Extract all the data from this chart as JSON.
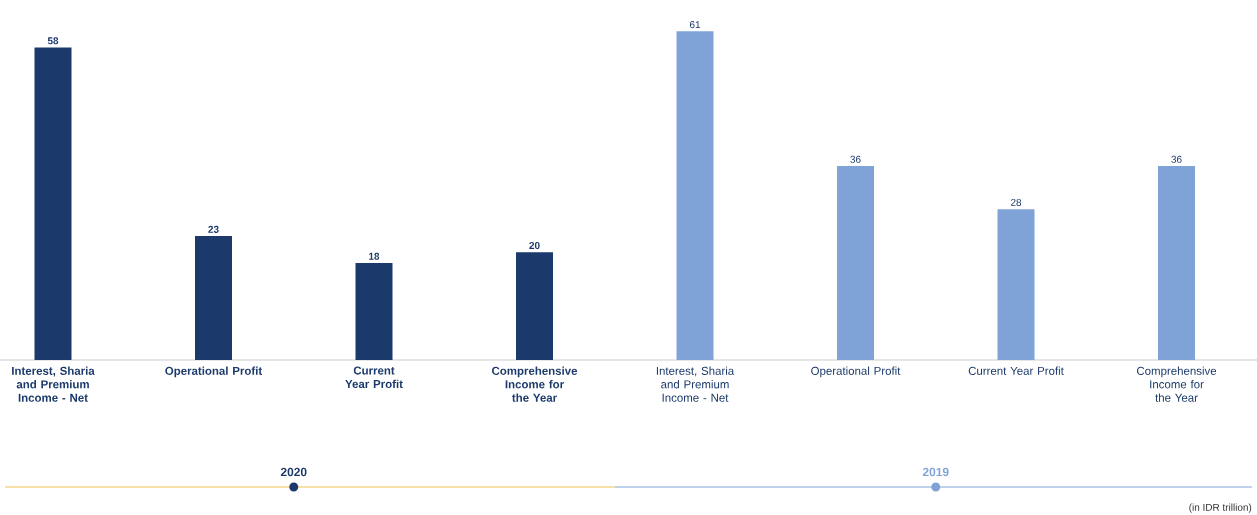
{
  "chart_data": {
    "type": "bar",
    "categories": [
      "Interest, Sharia and Premium Income - Net",
      "Operational Profit",
      "Current Year Profit",
      "Comprehensive Income for the Year",
      "Interest, Sharia and Premium Income - Net",
      "Operational Profit",
      "Current Year Profit",
      "Comprehensive Income for the Year"
    ],
    "series": [
      {
        "name": "2020",
        "color": "#1b3a6b",
        "values": [
          58,
          23,
          18,
          20,
          null,
          null,
          null,
          null
        ]
      },
      {
        "name": "2019",
        "color": "#7fa3d7",
        "values": [
          null,
          null,
          null,
          null,
          61,
          36,
          28,
          36
        ]
      }
    ],
    "data_labels": true,
    "annotations": [
      "(in IDR trillion)"
    ]
  }
}
